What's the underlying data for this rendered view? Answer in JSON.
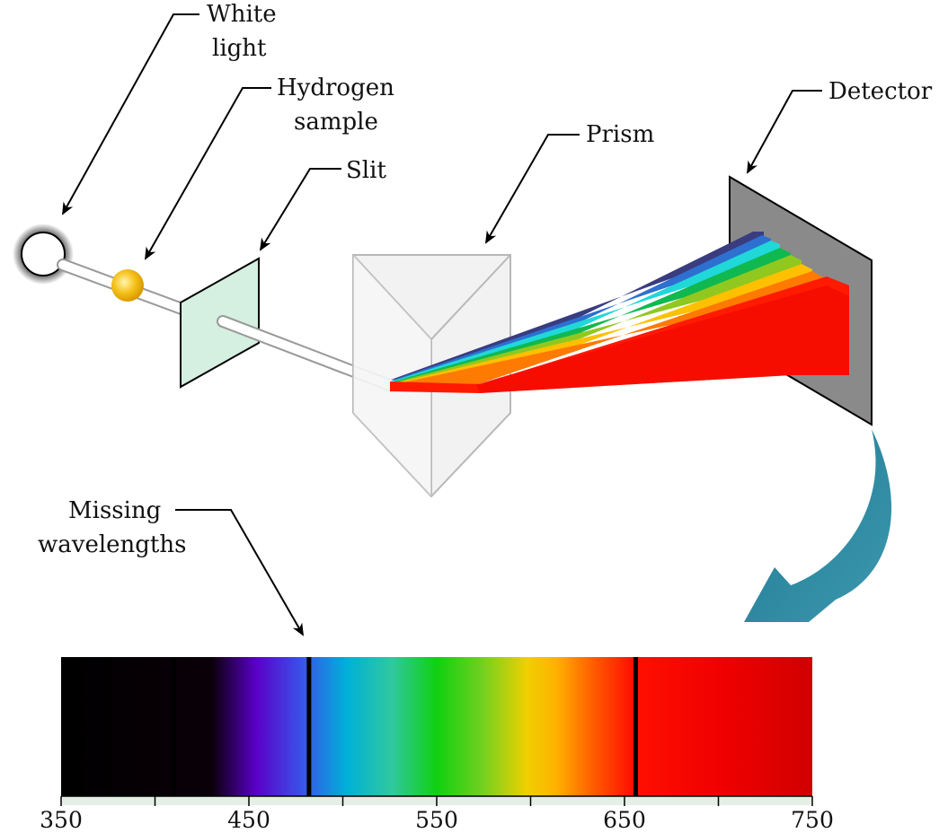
{
  "labels": {
    "white_light": [
      "White",
      "light"
    ],
    "hydrogen_sample": [
      "Hydrogen",
      "sample"
    ],
    "slit": "Slit",
    "prism": "Prism",
    "detector": "Detector",
    "missing_wavelengths": [
      "Missing",
      "wavelengths"
    ]
  },
  "spectrum": {
    "ticks": [
      350,
      450,
      550,
      650,
      750
    ],
    "range": [
      350,
      750
    ],
    "absorption_lines_nm": [
      410,
      482,
      656
    ]
  },
  "colors": {
    "slit_fill": "#d5efe0",
    "detector_fill": "#8a8a8a",
    "arrow_teal": "#2e8aa0",
    "beam_red": "#ff1a00"
  }
}
